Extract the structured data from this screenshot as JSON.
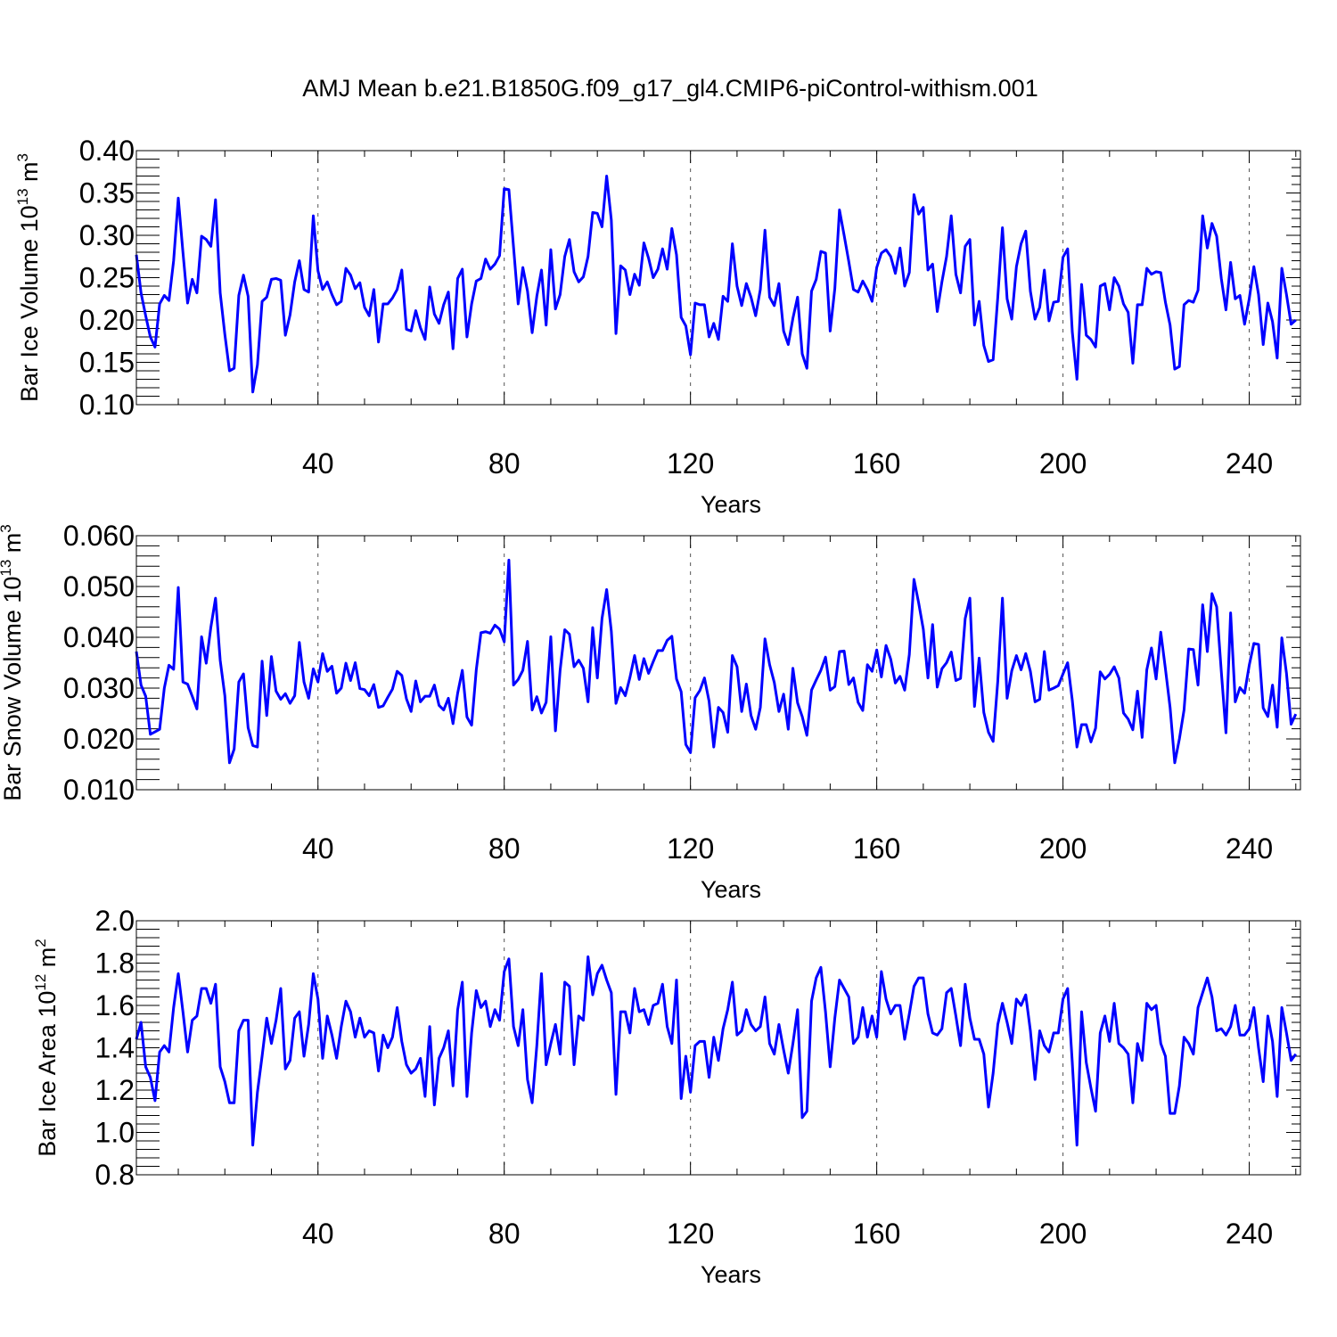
{
  "title": "AMJ Mean b.e21.B1850G.f09_g17_gl4.CMIP6-piControl-withism.001",
  "line_color": "#0000ff",
  "chart_data": [
    {
      "type": "line",
      "name": "ice-volume",
      "ylabel_main": "Bar Ice Volume 10",
      "ylabel_exp": "13",
      "ylabel_unit": " m",
      "ylabel_unit_exp": "3",
      "xlabel": "Years",
      "xlim": [
        1,
        251
      ],
      "ylim": [
        0.1,
        0.4
      ],
      "xticks": [
        40,
        80,
        120,
        160,
        200,
        240
      ],
      "xtick_labels": [
        "40",
        "80",
        "120",
        "160",
        "200",
        "240"
      ],
      "yticks": [
        0.1,
        0.15,
        0.2,
        0.25,
        0.3,
        0.35,
        0.4
      ],
      "ytick_labels": [
        "0.10",
        "0.15",
        "0.20",
        "0.25",
        "0.30",
        "0.35",
        "0.40"
      ],
      "yminor_step": 0.01,
      "x_start": 1,
      "values": [
        0.277,
        0.232,
        0.205,
        0.18,
        0.168,
        0.219,
        0.229,
        0.223,
        0.27,
        0.344,
        0.28,
        0.22,
        0.248,
        0.232,
        0.299,
        0.295,
        0.287,
        0.342,
        0.232,
        0.183,
        0.14,
        0.143,
        0.229,
        0.253,
        0.228,
        0.115,
        0.147,
        0.222,
        0.227,
        0.248,
        0.249,
        0.247,
        0.182,
        0.206,
        0.245,
        0.27,
        0.236,
        0.233,
        0.323,
        0.258,
        0.236,
        0.245,
        0.23,
        0.218,
        0.222,
        0.261,
        0.253,
        0.237,
        0.244,
        0.215,
        0.205,
        0.236,
        0.174,
        0.219,
        0.219,
        0.226,
        0.236,
        0.259,
        0.189,
        0.187,
        0.211,
        0.191,
        0.177,
        0.239,
        0.207,
        0.196,
        0.218,
        0.233,
        0.166,
        0.249,
        0.26,
        0.18,
        0.219,
        0.246,
        0.249,
        0.272,
        0.26,
        0.266,
        0.276,
        0.355,
        0.354,
        0.286,
        0.219,
        0.262,
        0.234,
        0.185,
        0.228,
        0.259,
        0.194,
        0.283,
        0.213,
        0.23,
        0.275,
        0.295,
        0.257,
        0.245,
        0.251,
        0.275,
        0.327,
        0.326,
        0.31,
        0.37,
        0.318,
        0.184,
        0.264,
        0.259,
        0.23,
        0.254,
        0.241,
        0.291,
        0.273,
        0.25,
        0.26,
        0.284,
        0.26,
        0.308,
        0.277,
        0.203,
        0.193,
        0.159,
        0.22,
        0.218,
        0.218,
        0.18,
        0.196,
        0.177,
        0.228,
        0.222,
        0.29,
        0.24,
        0.217,
        0.243,
        0.227,
        0.205,
        0.236,
        0.306,
        0.227,
        0.217,
        0.243,
        0.187,
        0.171,
        0.202,
        0.227,
        0.16,
        0.143,
        0.234,
        0.248,
        0.281,
        0.279,
        0.187,
        0.237,
        0.33,
        0.3,
        0.269,
        0.236,
        0.233,
        0.246,
        0.236,
        0.222,
        0.262,
        0.279,
        0.283,
        0.275,
        0.255,
        0.285,
        0.24,
        0.256,
        0.348,
        0.325,
        0.333,
        0.259,
        0.266,
        0.21,
        0.245,
        0.275,
        0.323,
        0.254,
        0.232,
        0.287,
        0.295,
        0.194,
        0.222,
        0.17,
        0.151,
        0.153,
        0.227,
        0.309,
        0.225,
        0.201,
        0.263,
        0.29,
        0.305,
        0.234,
        0.201,
        0.215,
        0.259,
        0.199,
        0.221,
        0.222,
        0.274,
        0.284,
        0.186,
        0.13,
        0.242,
        0.182,
        0.177,
        0.168,
        0.24,
        0.243,
        0.212,
        0.25,
        0.24,
        0.219,
        0.209,
        0.149,
        0.218,
        0.218,
        0.261,
        0.254,
        0.257,
        0.256,
        0.221,
        0.194,
        0.142,
        0.145,
        0.218,
        0.223,
        0.221,
        0.235,
        0.323,
        0.285,
        0.314,
        0.299,
        0.249,
        0.212,
        0.268,
        0.225,
        0.229,
        0.195,
        0.225,
        0.263,
        0.23,
        0.171,
        0.22,
        0.198,
        0.155,
        0.261,
        0.23,
        0.195,
        0.2
      ]
    },
    {
      "type": "line",
      "name": "snow-volume",
      "ylabel_main": "Bar Snow Volume 10",
      "ylabel_exp": "13",
      "ylabel_unit": " m",
      "ylabel_unit_exp": "3",
      "xlabel": "Years",
      "xlim": [
        1,
        251
      ],
      "ylim": [
        0.01,
        0.06
      ],
      "xticks": [
        40,
        80,
        120,
        160,
        200,
        240
      ],
      "xtick_labels": [
        "40",
        "80",
        "120",
        "160",
        "200",
        "240"
      ],
      "yticks": [
        0.01,
        0.02,
        0.03,
        0.04,
        0.05,
        0.06
      ],
      "ytick_labels": [
        "0.010",
        "0.020",
        "0.030",
        "0.040",
        "0.050",
        "0.060"
      ],
      "yminor_step": 0.002,
      "x_start": 1,
      "values": [
        0.0372,
        0.0306,
        0.0284,
        0.0209,
        0.0214,
        0.0219,
        0.03,
        0.0345,
        0.0337,
        0.0498,
        0.0312,
        0.0308,
        0.0284,
        0.0259,
        0.0401,
        0.0349,
        0.042,
        0.0477,
        0.0355,
        0.0285,
        0.0153,
        0.018,
        0.0312,
        0.0328,
        0.0222,
        0.0187,
        0.0184,
        0.0353,
        0.0246,
        0.0362,
        0.0294,
        0.0278,
        0.0289,
        0.027,
        0.0285,
        0.039,
        0.0312,
        0.028,
        0.0338,
        0.0312,
        0.0368,
        0.0333,
        0.0343,
        0.029,
        0.03,
        0.0349,
        0.0315,
        0.035,
        0.0299,
        0.0297,
        0.0285,
        0.0307,
        0.0262,
        0.0265,
        0.0282,
        0.0298,
        0.0333,
        0.0325,
        0.0279,
        0.0254,
        0.0314,
        0.0273,
        0.0284,
        0.0284,
        0.0306,
        0.0266,
        0.0257,
        0.028,
        0.023,
        0.029,
        0.0335,
        0.0243,
        0.0227,
        0.0336,
        0.0409,
        0.0411,
        0.0408,
        0.0424,
        0.0416,
        0.0391,
        0.0552,
        0.0306,
        0.0317,
        0.0335,
        0.0392,
        0.0257,
        0.0283,
        0.0251,
        0.0272,
        0.0401,
        0.0216,
        0.0335,
        0.0415,
        0.0406,
        0.0342,
        0.0355,
        0.0339,
        0.0273,
        0.0419,
        0.032,
        0.0437,
        0.0494,
        0.0412,
        0.027,
        0.0301,
        0.0285,
        0.0321,
        0.0364,
        0.0317,
        0.0358,
        0.0329,
        0.0352,
        0.0374,
        0.0374,
        0.0394,
        0.0402,
        0.0318,
        0.0293,
        0.0189,
        0.0173,
        0.0281,
        0.0295,
        0.032,
        0.0274,
        0.0184,
        0.0262,
        0.0252,
        0.0213,
        0.0364,
        0.0342,
        0.0254,
        0.0308,
        0.0246,
        0.0219,
        0.0262,
        0.0397,
        0.0346,
        0.0311,
        0.0254,
        0.0288,
        0.0219,
        0.0339,
        0.0271,
        0.0244,
        0.0207,
        0.0296,
        0.0316,
        0.0335,
        0.0361,
        0.0296,
        0.0303,
        0.0372,
        0.0373,
        0.0307,
        0.032,
        0.0272,
        0.0256,
        0.0346,
        0.0333,
        0.0375,
        0.0322,
        0.0384,
        0.0357,
        0.031,
        0.0323,
        0.0296,
        0.0366,
        0.0514,
        0.0468,
        0.0416,
        0.032,
        0.0425,
        0.0302,
        0.0338,
        0.035,
        0.0371,
        0.0315,
        0.0319,
        0.0437,
        0.0477,
        0.0264,
        0.0359,
        0.0252,
        0.0213,
        0.0195,
        0.0314,
        0.0477,
        0.028,
        0.0334,
        0.0364,
        0.0336,
        0.0368,
        0.0333,
        0.0273,
        0.0278,
        0.0372,
        0.0296,
        0.03,
        0.0305,
        0.0328,
        0.035,
        0.0276,
        0.0184,
        0.0228,
        0.0228,
        0.0194,
        0.0221,
        0.0332,
        0.0318,
        0.0327,
        0.0342,
        0.032,
        0.0251,
        0.0239,
        0.0218,
        0.0294,
        0.0203,
        0.0336,
        0.0379,
        0.0318,
        0.041,
        0.0338,
        0.0262,
        0.0153,
        0.02,
        0.0257,
        0.0377,
        0.0376,
        0.0306,
        0.0464,
        0.0372,
        0.0486,
        0.046,
        0.0333,
        0.0212,
        0.0448,
        0.0273,
        0.0301,
        0.029,
        0.0345,
        0.0388,
        0.0386,
        0.0261,
        0.0244,
        0.0306,
        0.0223,
        0.0399,
        0.0329,
        0.0229,
        0.0249
      ]
    },
    {
      "type": "line",
      "name": "ice-area",
      "ylabel_main": "Bar Ice Area 10",
      "ylabel_exp": "12",
      "ylabel_unit": " m",
      "ylabel_unit_exp": "2",
      "xlabel": "Years",
      "xlim": [
        1,
        251
      ],
      "ylim": [
        0.8,
        2.0
      ],
      "xticks": [
        40,
        80,
        120,
        160,
        200,
        240
      ],
      "xtick_labels": [
        "40",
        "80",
        "120",
        "160",
        "200",
        "240"
      ],
      "yticks": [
        0.8,
        1.0,
        1.2,
        1.4,
        1.6,
        1.8,
        2.0
      ],
      "ytick_labels": [
        "0.8",
        "1.0",
        "1.2",
        "1.4",
        "1.6",
        "1.8",
        "2.0"
      ],
      "yminor_step": 0.04,
      "x_start": 1,
      "values": [
        1.44,
        1.52,
        1.31,
        1.26,
        1.15,
        1.38,
        1.41,
        1.38,
        1.59,
        1.75,
        1.57,
        1.38,
        1.53,
        1.55,
        1.68,
        1.68,
        1.61,
        1.7,
        1.31,
        1.24,
        1.14,
        1.14,
        1.48,
        1.53,
        1.53,
        0.94,
        1.19,
        1.36,
        1.54,
        1.42,
        1.53,
        1.68,
        1.3,
        1.34,
        1.54,
        1.57,
        1.36,
        1.51,
        1.75,
        1.63,
        1.35,
        1.55,
        1.46,
        1.35,
        1.5,
        1.62,
        1.57,
        1.45,
        1.54,
        1.45,
        1.48,
        1.47,
        1.29,
        1.46,
        1.4,
        1.45,
        1.59,
        1.43,
        1.32,
        1.28,
        1.3,
        1.35,
        1.17,
        1.5,
        1.13,
        1.35,
        1.4,
        1.48,
        1.22,
        1.58,
        1.71,
        1.17,
        1.47,
        1.67,
        1.59,
        1.62,
        1.5,
        1.58,
        1.53,
        1.76,
        1.82,
        1.5,
        1.41,
        1.58,
        1.25,
        1.14,
        1.41,
        1.75,
        1.32,
        1.42,
        1.51,
        1.37,
        1.71,
        1.69,
        1.32,
        1.55,
        1.53,
        1.83,
        1.65,
        1.75,
        1.79,
        1.72,
        1.66,
        1.18,
        1.57,
        1.57,
        1.47,
        1.68,
        1.57,
        1.58,
        1.51,
        1.6,
        1.61,
        1.7,
        1.5,
        1.42,
        1.72,
        1.16,
        1.36,
        1.19,
        1.41,
        1.43,
        1.43,
        1.26,
        1.45,
        1.34,
        1.49,
        1.58,
        1.71,
        1.46,
        1.48,
        1.58,
        1.51,
        1.48,
        1.5,
        1.64,
        1.42,
        1.37,
        1.51,
        1.39,
        1.28,
        1.42,
        1.58,
        1.07,
        1.1,
        1.62,
        1.73,
        1.78,
        1.57,
        1.31,
        1.54,
        1.72,
        1.68,
        1.64,
        1.42,
        1.45,
        1.59,
        1.45,
        1.55,
        1.45,
        1.76,
        1.63,
        1.56,
        1.6,
        1.6,
        1.44,
        1.56,
        1.69,
        1.73,
        1.73,
        1.56,
        1.47,
        1.46,
        1.49,
        1.66,
        1.68,
        1.55,
        1.41,
        1.7,
        1.54,
        1.44,
        1.44,
        1.37,
        1.12,
        1.28,
        1.51,
        1.61,
        1.52,
        1.42,
        1.63,
        1.6,
        1.65,
        1.48,
        1.25,
        1.48,
        1.41,
        1.38,
        1.47,
        1.47,
        1.63,
        1.68,
        1.33,
        0.94,
        1.57,
        1.33,
        1.21,
        1.1,
        1.47,
        1.55,
        1.43,
        1.61,
        1.42,
        1.4,
        1.37,
        1.14,
        1.42,
        1.34,
        1.61,
        1.58,
        1.6,
        1.42,
        1.36,
        1.09,
        1.09,
        1.22,
        1.45,
        1.42,
        1.37,
        1.59,
        1.66,
        1.73,
        1.64,
        1.48,
        1.49,
        1.46,
        1.5,
        1.6,
        1.46,
        1.46,
        1.49,
        1.59,
        1.4,
        1.24,
        1.55,
        1.43,
        1.17,
        1.59,
        1.47,
        1.34,
        1.37
      ]
    }
  ]
}
